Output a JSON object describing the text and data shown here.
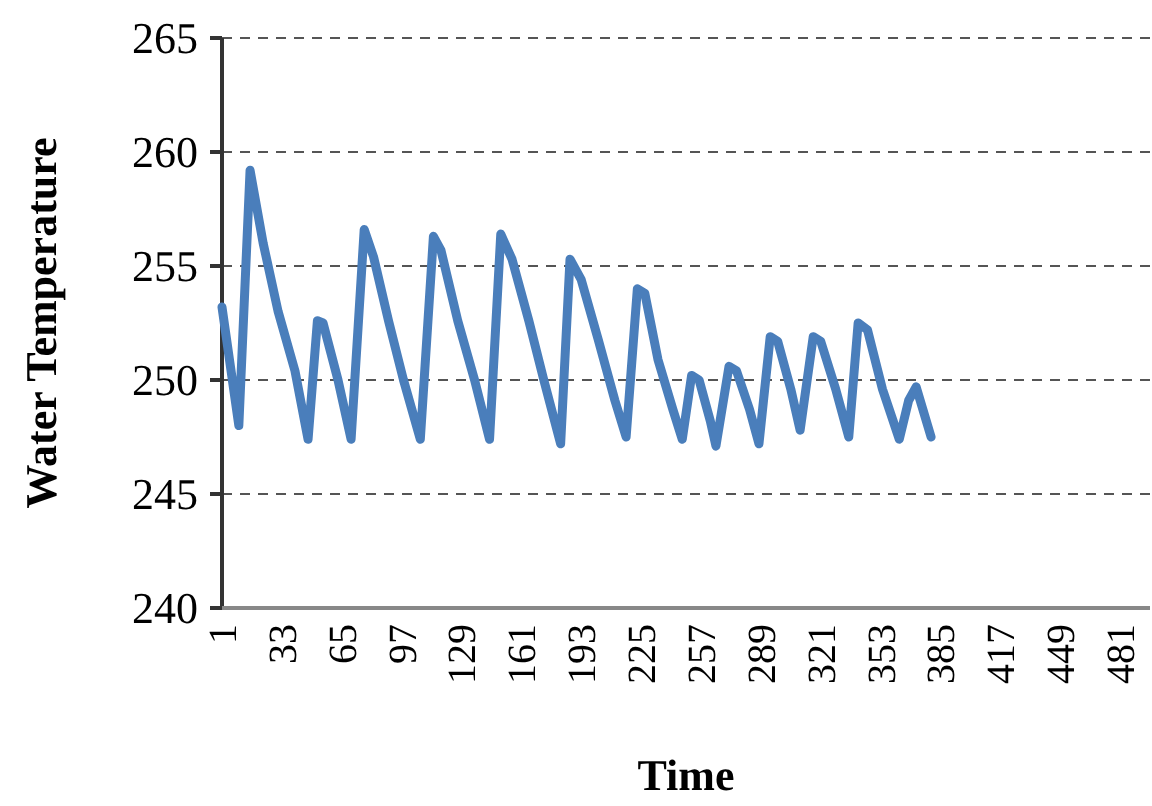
{
  "chart_data": {
    "type": "line",
    "xlabel": "Time",
    "ylabel": "Water Temperature",
    "xlim": [
      1,
      497
    ],
    "xticks": [
      1,
      33,
      65,
      97,
      129,
      161,
      193,
      225,
      257,
      289,
      321,
      353,
      385,
      417,
      449,
      481
    ],
    "ylim": [
      240,
      265
    ],
    "yticks": [
      240,
      245,
      250,
      255,
      260,
      265
    ],
    "grid": "y",
    "line_style": "solid",
    "marker": "none",
    "series": [
      {
        "color": "#4a7ebb",
        "x": [
          1,
          10,
          16,
          23,
          31,
          40,
          47,
          52,
          55,
          63,
          70,
          77,
          82,
          90,
          98,
          107,
          114,
          118,
          127,
          136,
          144,
          150,
          156,
          165,
          173,
          182,
          187,
          193,
          202,
          211,
          217,
          223,
          227,
          234,
          242,
          247,
          252,
          256,
          262,
          265,
          272,
          276,
          283,
          288,
          294,
          298,
          305,
          310,
          317,
          321,
          329,
          336,
          341,
          346,
          354,
          363,
          368,
          372,
          380
        ],
        "values": [
          253.2,
          248,
          259.2,
          256,
          253,
          250.4,
          247.4,
          252.6,
          252.5,
          250,
          247.4,
          256.6,
          255.4,
          252.6,
          250,
          247.4,
          256.3,
          255.7,
          252.6,
          250,
          247.4,
          256.4,
          255.3,
          252.6,
          250,
          247.2,
          255.3,
          254.4,
          251.8,
          249.1,
          247.5,
          254,
          253.8,
          250.9,
          248.7,
          247.4,
          250.2,
          250,
          248.2,
          247.1,
          250.6,
          250.4,
          248.7,
          247.2,
          251.9,
          251.7,
          249.6,
          247.8,
          251.9,
          251.7,
          249.6,
          247.5,
          252.5,
          252.2,
          249.6,
          247.4,
          249.1,
          249.7,
          247.5
        ]
      }
    ]
  }
}
